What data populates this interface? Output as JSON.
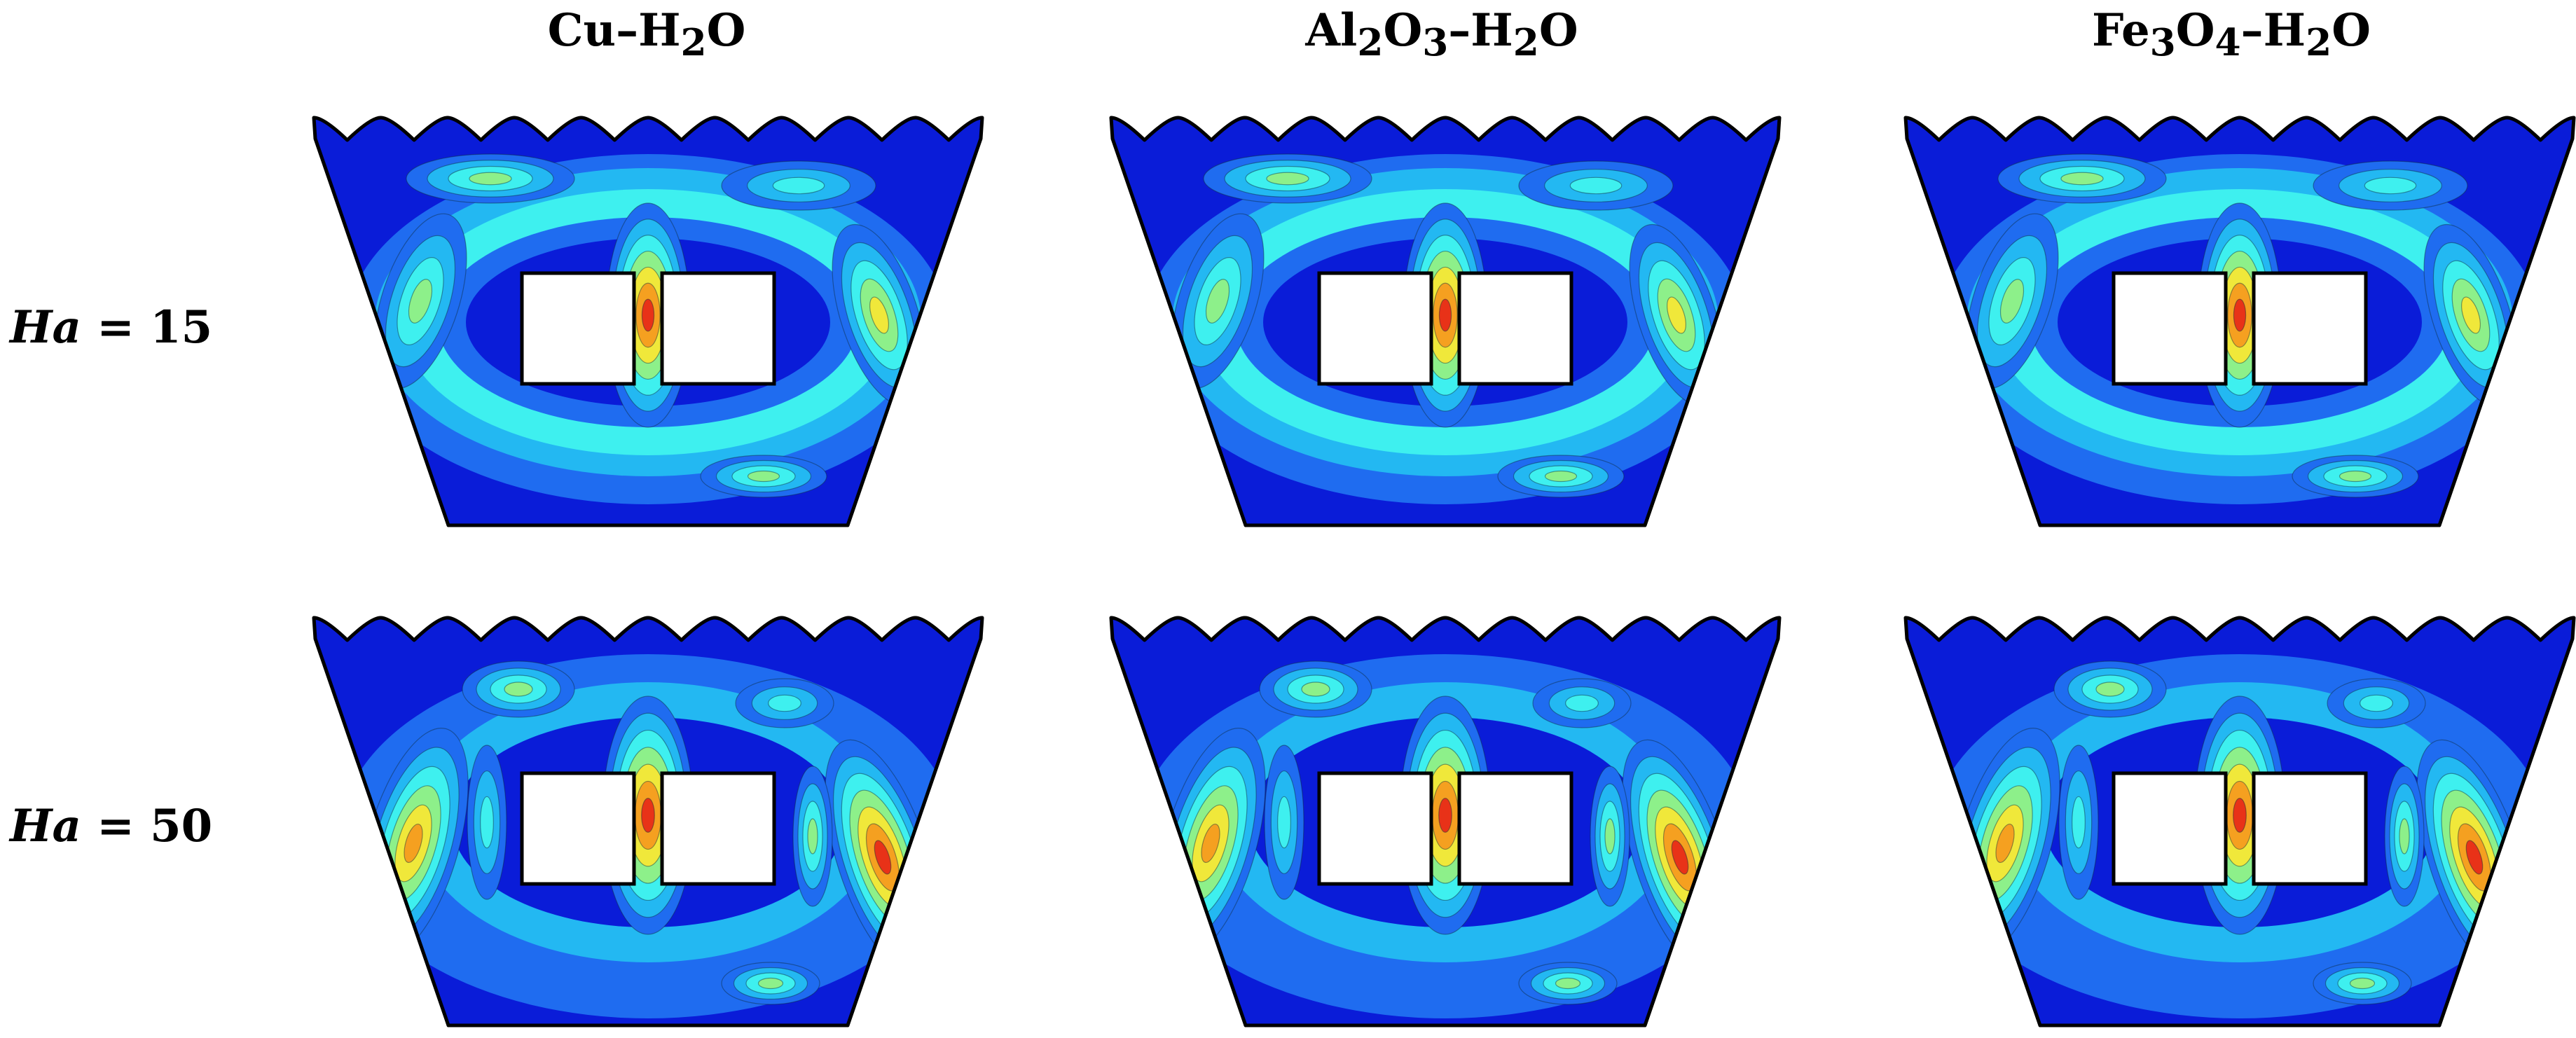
{
  "columns": [
    {
      "main": "Cu–H",
      "sub": "2",
      "tail": "O"
    },
    {
      "a": "Al",
      "s1": "2",
      "b": "O",
      "s2": "3",
      "c": "–H",
      "s3": "2",
      "d": "O"
    },
    {
      "a": "Fe",
      "s1": "3",
      "b": "O",
      "s2": "4",
      "c": "–H",
      "s3": "2",
      "d": "O"
    }
  ],
  "rows": [
    {
      "symbol": "Ha",
      "eq": " = ",
      "value": "15"
    },
    {
      "symbol": "Ha",
      "eq": " = ",
      "value": "50"
    }
  ],
  "colors": {
    "background": "#0a1cd8",
    "low": "#1f6cf0",
    "mid_low": "#23b8f2",
    "mid": "#3ef0ef",
    "mid_high": "#8df08a",
    "high": "#f0e83a",
    "very_high": "#f5a020",
    "peak": "#e83218",
    "outline": "#000000"
  }
}
